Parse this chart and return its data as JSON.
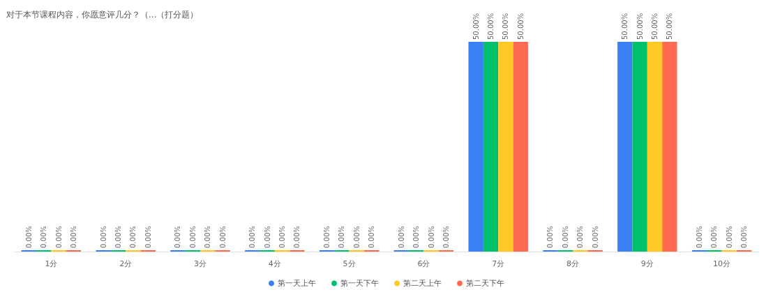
{
  "chart_data": {
    "type": "bar",
    "title": "对于本节课程内容，你愿意评几分？（...（打分题）",
    "categories": [
      "1分",
      "2分",
      "3分",
      "4分",
      "5分",
      "6分",
      "7分",
      "8分",
      "9分",
      "10分"
    ],
    "series": [
      {
        "name": "第一天上午",
        "color": "#3a7ff6",
        "values": [
          0,
          0,
          0,
          0,
          0,
          0,
          50,
          0,
          50,
          0
        ],
        "value_labels": [
          "0.00%",
          "0.00%",
          "0.00%",
          "0.00%",
          "0.00%",
          "0.00%",
          "50.00%",
          "0.00%",
          "50.00%",
          "0.00%"
        ]
      },
      {
        "name": "第一天下午",
        "color": "#00c06e",
        "values": [
          0,
          0,
          0,
          0,
          0,
          0,
          50,
          0,
          50,
          0
        ],
        "value_labels": [
          "0.00%",
          "0.00%",
          "0.00%",
          "0.00%",
          "0.00%",
          "0.00%",
          "50.00%",
          "0.00%",
          "50.00%",
          "0.00%"
        ]
      },
      {
        "name": "第二天上午",
        "color": "#ffca28",
        "values": [
          0,
          0,
          0,
          0,
          0,
          0,
          50,
          0,
          50,
          0
        ],
        "value_labels": [
          "0.00%",
          "0.00%",
          "0.00%",
          "0.00%",
          "0.00%",
          "0.00%",
          "50.00%",
          "0.00%",
          "50.00%",
          "0.00%"
        ]
      },
      {
        "name": "第二天下午",
        "color": "#ff6b52",
        "values": [
          0,
          0,
          0,
          0,
          0,
          0,
          50,
          0,
          50,
          0
        ],
        "value_labels": [
          "0.00%",
          "0.00%",
          "0.00%",
          "0.00%",
          "0.00%",
          "0.00%",
          "50.00%",
          "0.00%",
          "50.00%",
          "0.00%"
        ]
      }
    ],
    "legend": "bottom"
  }
}
